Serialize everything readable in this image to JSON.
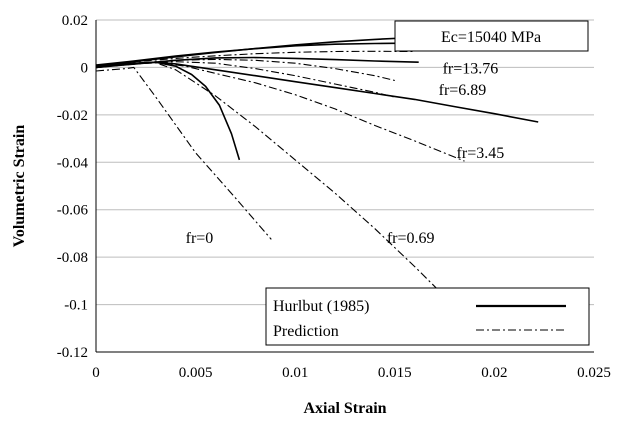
{
  "chart_data": {
    "type": "line",
    "title": "",
    "xlabel": "Axial Strain",
    "ylabel": "Volumetric Strain",
    "xlim": [
      0,
      0.025
    ],
    "ylim": [
      -0.12,
      0.02
    ],
    "x_ticks": [
      0,
      0.005,
      0.01,
      0.015,
      0.02,
      0.025
    ],
    "x_tick_labels": [
      "0",
      "0.005",
      "0.01",
      "0.015",
      "0.02",
      "0.025"
    ],
    "y_ticks": [
      0.02,
      0,
      -0.02,
      -0.04,
      -0.06,
      -0.08,
      -0.1,
      -0.12
    ],
    "y_tick_labels": [
      "0.02",
      "0",
      "-0.02",
      "-0.04",
      "-0.06",
      "-0.08",
      "-0.1",
      "-0.12"
    ],
    "grid": "horizontal",
    "legend_position": "bottom-right",
    "legend": [
      {
        "name": "Hurlbut (1985)",
        "style": "solid"
      },
      {
        "name": "Prediction",
        "style": "dashdot"
      }
    ],
    "annotations": [
      {
        "text": "Ec=15040 MPa",
        "boxed": true
      },
      {
        "text": "fr=13.76",
        "x": 0.0174,
        "y": -0.0005
      },
      {
        "text": "fr=6.89",
        "x": 0.0172,
        "y": -0.0095
      },
      {
        "text": "fr=3.45",
        "x": 0.0181,
        "y": -0.036
      },
      {
        "text": "fr=0",
        "x": 0.0045,
        "y": -0.072
      },
      {
        "text": "fr=0.69",
        "x": 0.0146,
        "y": -0.072
      }
    ],
    "series": [
      {
        "style": "solid",
        "x": [
          0,
          0.002,
          0.004,
          0.006,
          0.008,
          0.01,
          0.012,
          0.014,
          0.016
        ],
        "y": [
          0.0005,
          0.0025,
          0.0045,
          0.0063,
          0.008,
          0.0095,
          0.0108,
          0.0118,
          0.0126
        ]
      },
      {
        "style": "solid",
        "x": [
          0,
          0.002,
          0.004,
          0.006,
          0.008,
          0.01,
          0.012,
          0.014,
          0.0155
        ],
        "y": [
          0.001,
          0.0028,
          0.0048,
          0.0065,
          0.0079,
          0.0091,
          0.0098,
          0.0101,
          0.0102
        ]
      },
      {
        "style": "solid",
        "x": [
          0,
          0.002,
          0.004,
          0.006,
          0.008,
          0.01,
          0.012,
          0.014,
          0.0162
        ],
        "y": [
          0,
          0.0015,
          0.003,
          0.004,
          0.0042,
          0.0038,
          0.0033,
          0.0027,
          0.0022
        ]
      },
      {
        "style": "solid",
        "x": [
          0,
          0.002,
          0.003,
          0.004,
          0.006,
          0.008,
          0.01,
          0.012,
          0.014,
          0.016,
          0.018,
          0.02,
          0.0222
        ],
        "y": [
          0,
          0.0018,
          0.0022,
          0.0015,
          -0.001,
          -0.0035,
          -0.006,
          -0.0085,
          -0.011,
          -0.0135,
          -0.0165,
          -0.0195,
          -0.023
        ]
      },
      {
        "style": "solid",
        "x": [
          0,
          0.0015,
          0.003,
          0.004,
          0.0048,
          0.0055,
          0.0062,
          0.0068,
          0.0072
        ],
        "y": [
          0,
          0.0015,
          0.0022,
          0.0005,
          -0.003,
          -0.008,
          -0.016,
          -0.028,
          -0.039
        ]
      },
      {
        "style": "dashdot",
        "x": [
          0,
          0.002,
          0.004,
          0.006,
          0.008,
          0.01,
          0.012,
          0.014,
          0.016
        ],
        "y": [
          0.0007,
          0.0024,
          0.0038,
          0.0049,
          0.0058,
          0.0064,
          0.0067,
          0.0068,
          0.0067
        ]
      },
      {
        "style": "dashdot",
        "x": [
          0,
          0.002,
          0.004,
          0.006,
          0.008,
          0.01,
          0.012,
          0.014,
          0.015
        ],
        "y": [
          0.0002,
          0.0018,
          0.003,
          0.0034,
          0.003,
          0.0018,
          -0.0005,
          -0.0035,
          -0.0055
        ]
      },
      {
        "style": "dashdot",
        "x": [
          0,
          0.002,
          0.004,
          0.006,
          0.008,
          0.01,
          0.012,
          0.014,
          0.015
        ],
        "y": [
          0,
          0.0015,
          0.0024,
          0.0018,
          -0.0005,
          -0.0035,
          -0.007,
          -0.0105,
          -0.0125
        ]
      },
      {
        "style": "dashdot",
        "x": [
          0,
          0.002,
          0.003,
          0.0045,
          0.006,
          0.008,
          0.01,
          0.012,
          0.014,
          0.016,
          0.0185
        ],
        "y": [
          0,
          0.0015,
          0.0022,
          0.0005,
          -0.0025,
          -0.0065,
          -0.0115,
          -0.0175,
          -0.0245,
          -0.031,
          -0.0395
        ]
      },
      {
        "style": "dashdot",
        "x": [
          0,
          0.002,
          0.003,
          0.004,
          0.006,
          0.008,
          0.01,
          0.012,
          0.014,
          0.016,
          0.0175
        ],
        "y": [
          0,
          0.0015,
          0.002,
          -0.001,
          -0.012,
          -0.025,
          -0.039,
          -0.053,
          -0.068,
          -0.084,
          -0.0965
        ]
      },
      {
        "style": "dashdot",
        "x": [
          0,
          0.0015,
          0.0019,
          0.003,
          0.005,
          0.007,
          0.0088
        ],
        "y": [
          -0.0015,
          -0.0005,
          0,
          -0.0125,
          -0.036,
          -0.055,
          -0.0725
        ]
      }
    ]
  }
}
